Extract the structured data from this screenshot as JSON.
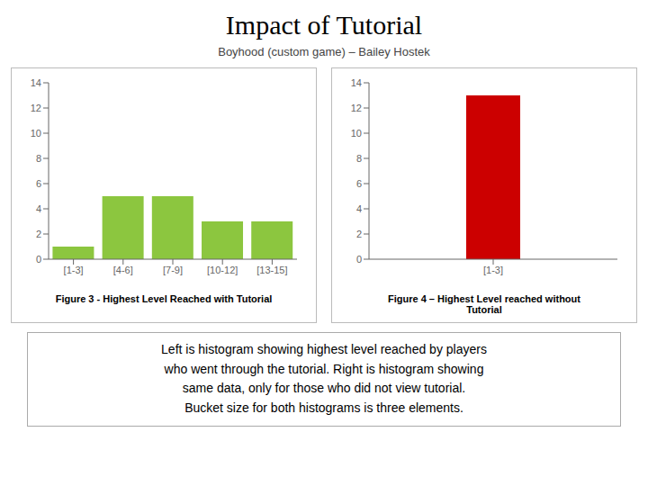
{
  "title": "Impact of Tutorial",
  "subtitle": "Boyhood (custom game) – Bailey Hostek",
  "annotations": [
    "Left is histogram showing highest level reached by players\nwho went through the tutorial. Right is histogram showing\nsame data, only for those who did not view tutorial.\nBucket size for both histograms is three elements."
  ],
  "chart_data": [
    {
      "type": "bar",
      "title": "Figure 3 - Highest Level Reached with Tutorial",
      "categories": [
        "[1-3]",
        "[4-6]",
        "[7-9]",
        "[10-12]",
        "[13-15]"
      ],
      "values": [
        1,
        5,
        5,
        3,
        3
      ],
      "color": "#8cc63f",
      "ylim": [
        0,
        14
      ],
      "yticks": [
        0,
        2,
        4,
        6,
        8,
        10,
        12,
        14
      ],
      "grid": false
    },
    {
      "type": "bar",
      "title": "Figure 4 – Highest Level reached without\nTutorial",
      "categories": [
        "[1-3]"
      ],
      "values": [
        13
      ],
      "color": "#cc0000",
      "ylim": [
        0,
        14
      ],
      "yticks": [
        0,
        2,
        4,
        6,
        8,
        10,
        12,
        14
      ],
      "grid": false
    }
  ]
}
